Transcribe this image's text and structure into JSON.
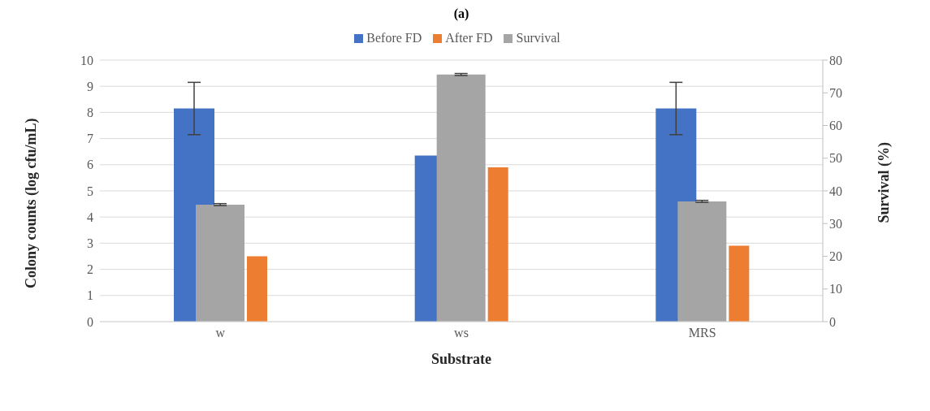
{
  "chart_data": {
    "type": "bar",
    "title": "(a)",
    "xlabel": "Substrate",
    "ylabel": "Colony counts (log cfu/mL)",
    "y2label": "Survival (%)",
    "categories": [
      "w",
      "ws",
      "MRS"
    ],
    "series": [
      {
        "name": "Before FD",
        "color": "#4472c4",
        "values": [
          8.15,
          6.35,
          8.15
        ],
        "errors": [
          1.0,
          null,
          1.0
        ]
      },
      {
        "name": "After FD",
        "color": "#ed7d31",
        "values": [
          2.5,
          5.9,
          2.9
        ]
      },
      {
        "name": "Survival",
        "color": "#a5a5a5",
        "values": [
          35.8,
          75.6,
          36.8
        ],
        "errors": [
          0.3,
          0.3,
          0.3
        ],
        "axis": "y2"
      }
    ],
    "ylim": [
      0,
      10
    ],
    "yticks": [
      0,
      1,
      2,
      3,
      4,
      5,
      6,
      7,
      8,
      9,
      10
    ],
    "y2lim": [
      0,
      80
    ],
    "y2ticks": [
      0,
      10,
      20,
      30,
      40,
      50,
      60,
      70,
      80
    ],
    "grid": "y",
    "legend": "top"
  }
}
